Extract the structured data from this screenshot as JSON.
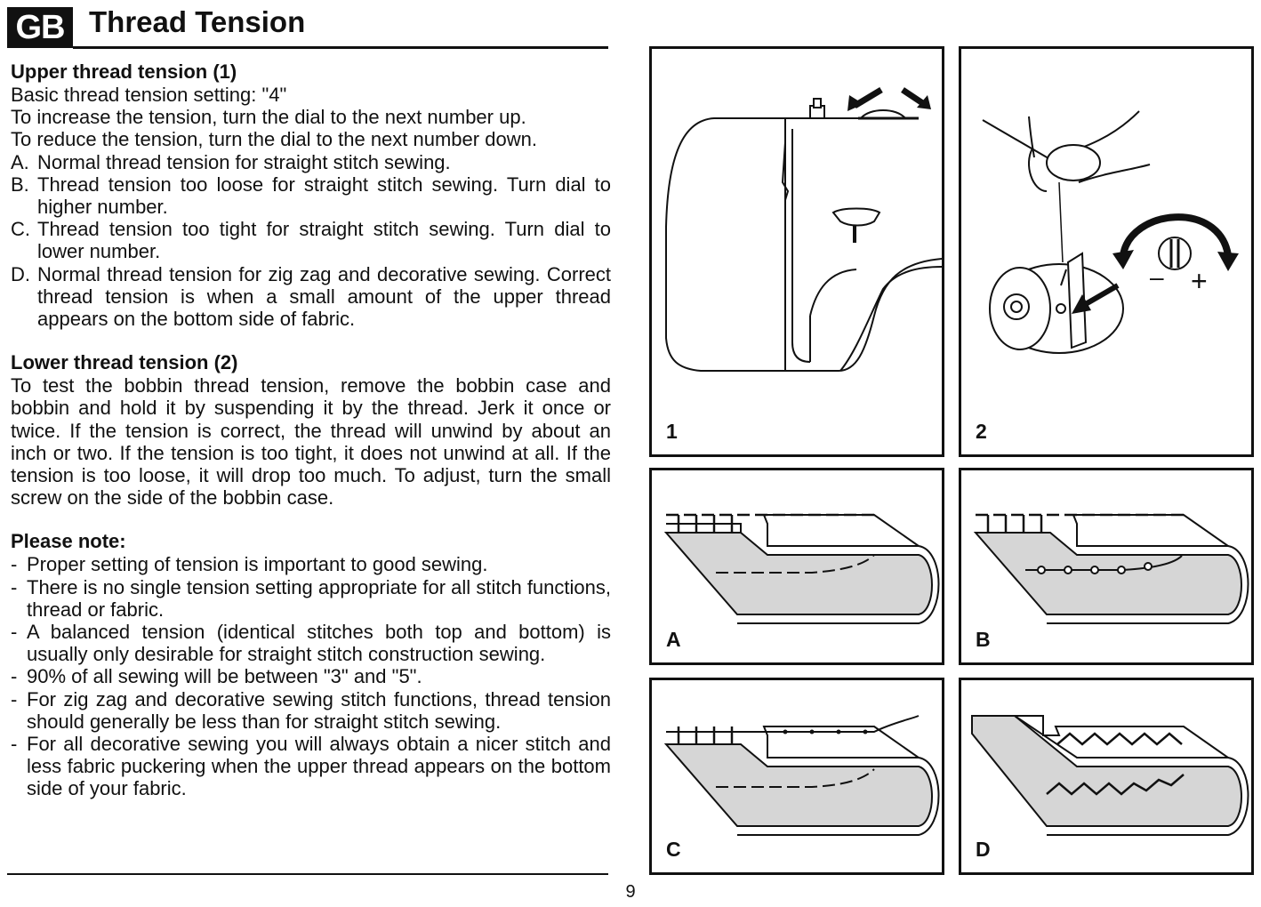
{
  "header": {
    "badge": "GB",
    "title": "Thread Tension"
  },
  "upper": {
    "heading": "Upper thread tension (1)",
    "lines": [
      "Basic thread tension setting: \"4\"",
      "To increase the tension, turn the dial to the next number up.",
      "To reduce the tension, turn the dial to the next number down."
    ],
    "items": [
      {
        "marker": "A.",
        "text": "Normal thread tension for straight stitch sewing."
      },
      {
        "marker": "B.",
        "text": "Thread tension too loose for straight stitch sewing. Turn dial to higher number."
      },
      {
        "marker": "C.",
        "text": "Thread tension too tight for straight stitch sewing. Turn dial to lower number."
      },
      {
        "marker": "D.",
        "text": "Normal thread tension for zig zag and decorative sewing. Correct thread tension is when a small amount of the upper thread appears on the bottom side of fabric."
      }
    ]
  },
  "lower": {
    "heading": "Lower thread tension (2)",
    "text": "To test the bobbin thread tension, remove the bobbin case and bobbin and hold it by suspending it by the thread. Jerk it once or twice. If the tension is correct, the thread will unwind by about an inch or two. If the tension is too tight, it does not unwind at all. If the tension is too loose, it will drop too much. To adjust, turn the small screw on the side of the bobbin case."
  },
  "note": {
    "heading": "Please note:",
    "items": [
      "Proper setting of tension is important to good sewing.",
      "There is no single tension setting appropriate for all stitch functions, thread or fabric.",
      "A balanced tension (identical stitches both top and bottom) is usually only desirable for straight stitch construction sewing.",
      "90% of all sewing will be between \"3\" and \"5\".",
      "For zig zag and decorative sewing stitch functions, thread tension should generally be less than for straight stitch sewing.",
      "For all decorative sewing you will always obtain a nicer stitch and less fabric puckering when the upper thread appears on the bottom side of your fabric."
    ],
    "marker": "-"
  },
  "figures": {
    "fig1_label": "1",
    "fig2_label": "2",
    "fig2_minus": "–",
    "fig2_plus": "+",
    "figA_label": "A",
    "figB_label": "B",
    "figC_label": "C",
    "figD_label": "D"
  },
  "page_number": "9"
}
